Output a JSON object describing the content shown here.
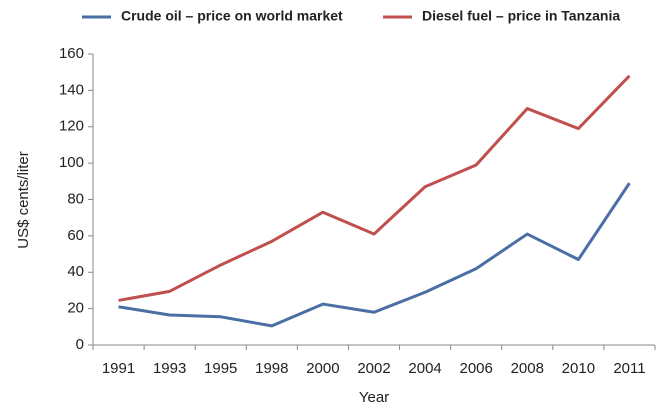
{
  "chart_data": {
    "type": "line",
    "categories": [
      "1991",
      "1993",
      "1995",
      "1998",
      "2000",
      "2002",
      "2004",
      "2006",
      "2008",
      "2010",
      "2011"
    ],
    "series": [
      {
        "name": "Crude oil – price on world market",
        "color": "#4a6fa5",
        "values": [
          21,
          16.5,
          15.5,
          10.5,
          22.5,
          18,
          29,
          42,
          61,
          47,
          89
        ]
      },
      {
        "name": "Diesel fuel – price in Tanzania",
        "color": "#c0504d",
        "values": [
          24.5,
          29.5,
          44,
          57,
          73,
          61,
          87,
          99,
          130,
          119,
          148
        ]
      }
    ],
    "xlabel": "Year",
    "ylabel": "US$ cents/liter",
    "ylim": [
      0,
      160
    ],
    "yticks": [
      0,
      20,
      40,
      60,
      80,
      100,
      120,
      140,
      160
    ],
    "grid": false,
    "legend": "top"
  }
}
